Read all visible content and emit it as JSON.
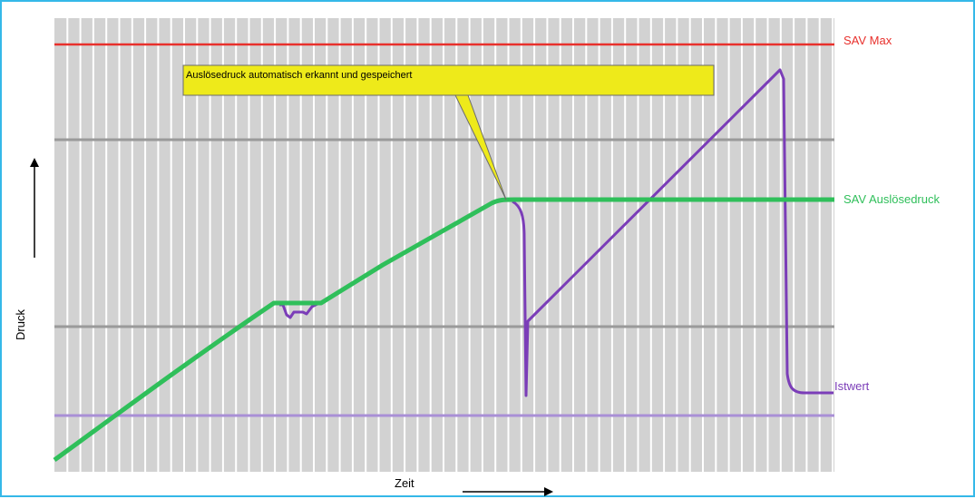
{
  "diagram": {
    "x_axis_label": "Zeit",
    "y_axis_label": "Druck",
    "callout_text": "Auslösedruck automatisch erkannt und gespeichert",
    "lines": {
      "sav_max": {
        "label": "SAV Max",
        "color": "#e8302c"
      },
      "sav_ausloesedruck": {
        "label": "SAV Auslösedruck",
        "color": "#2fbf5a"
      },
      "istwert": {
        "label": "Istwert",
        "color": "#7b3db8"
      },
      "lower_limit": {
        "color": "#a98fd6"
      },
      "gray_ref": {
        "color": "#9a9a9a"
      }
    },
    "colors": {
      "grid_background": "#d2d2d2",
      "grid_lines": "#ffffff",
      "callout_fill": "#eeea1a",
      "frame_border": "#35b8e8"
    }
  }
}
